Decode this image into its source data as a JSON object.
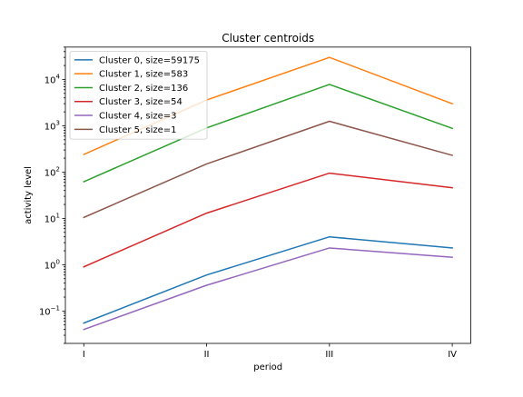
{
  "chart_data": {
    "type": "line",
    "title": "Cluster centroids",
    "xlabel": "period",
    "ylabel": "activity level",
    "categories": [
      "I",
      "II",
      "III",
      "IV"
    ],
    "y_scale": "log",
    "ylim": [
      0.02,
      50000
    ],
    "y_major_ticks": [
      {
        "value": 0.1,
        "base": "10",
        "exp": "−1"
      },
      {
        "value": 1,
        "base": "10",
        "exp": "0"
      },
      {
        "value": 10,
        "base": "10",
        "exp": "1"
      },
      {
        "value": 100,
        "base": "10",
        "exp": "2"
      },
      {
        "value": 1000,
        "base": "10",
        "exp": "3"
      },
      {
        "value": 10000,
        "base": "10",
        "exp": "4"
      }
    ],
    "grid": false,
    "legend_position": "top-left",
    "series": [
      {
        "name": "Cluster 0, size=59175",
        "color": "#1f77b4",
        "values": [
          0.055,
          0.6,
          4.0,
          2.3
        ]
      },
      {
        "name": "Cluster 1, size=583",
        "color": "#ff7f0e",
        "values": [
          240,
          3600,
          30000,
          3000
        ]
      },
      {
        "name": "Cluster 2, size=136",
        "color": "#2ca02c",
        "values": [
          62,
          900,
          7800,
          880
        ]
      },
      {
        "name": "Cluster 3, size=54",
        "color": "#d62728",
        "values": [
          0.9,
          13,
          95,
          46
        ]
      },
      {
        "name": "Cluster 4, size=3",
        "color": "#9467bd",
        "values": [
          0.04,
          0.36,
          2.3,
          1.45
        ]
      },
      {
        "name": "Cluster 5, size=1",
        "color": "#8c564b",
        "values": [
          10.5,
          150,
          1250,
          230
        ]
      }
    ]
  }
}
